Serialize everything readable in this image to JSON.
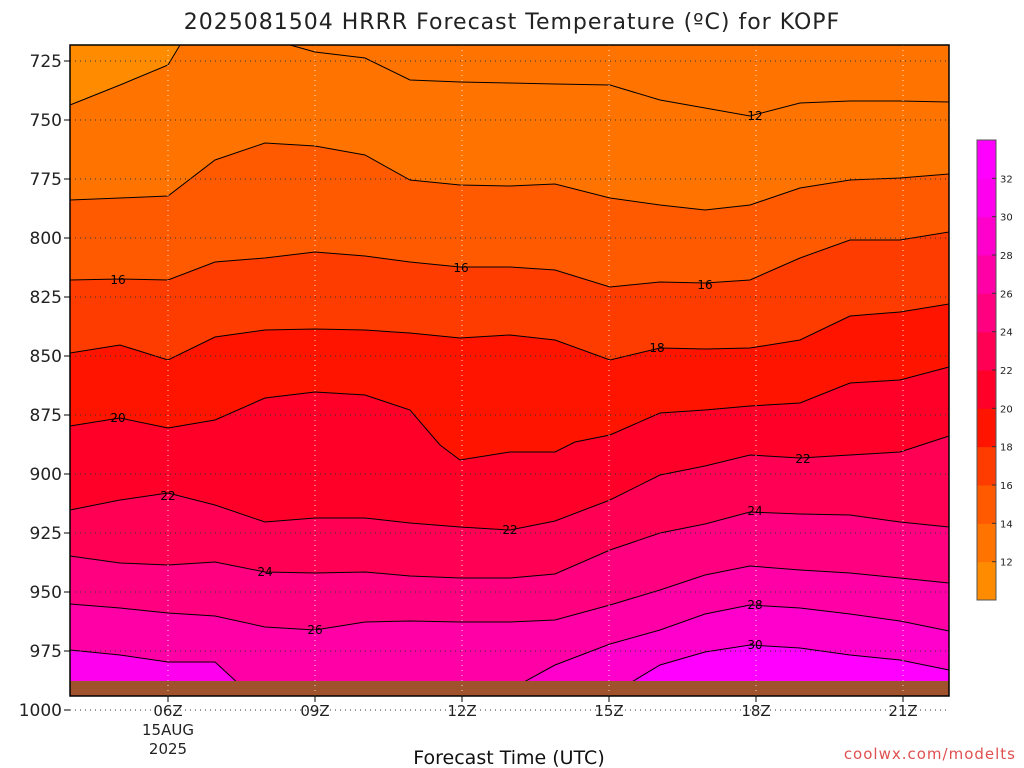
{
  "chart_data": {
    "type": "contour",
    "title": "2025081504 HRRR Forecast Temperature (ºC) for KOPF",
    "xlabel": "Forecast Time (UTC)",
    "ylabel": "",
    "credit": "coolwx.com/modelts",
    "y_axis": {
      "reversed": true,
      "ticks": [
        "725",
        "750",
        "775",
        "800",
        "825",
        "850",
        "875",
        "900",
        "925",
        "950",
        "975",
        "1000"
      ]
    },
    "x_axis": {
      "ticks": [
        "06Z",
        "09Z",
        "12Z",
        "15Z",
        "18Z",
        "21Z"
      ],
      "date_lines": [
        "15AUG",
        "2025"
      ]
    },
    "grid": true,
    "colorbar": {
      "ticks": [
        "12",
        "14",
        "16",
        "18",
        "20",
        "22",
        "24",
        "26",
        "28",
        "30",
        "32"
      ],
      "colors": [
        "#ff8c00",
        "#ff7300",
        "#ff5a00",
        "#ff3c00",
        "#ff1400",
        "#ff0028",
        "#ff0055",
        "#ff0080",
        "#ff00a6",
        "#ff00cc",
        "#ff00ee",
        "#ff00ff"
      ]
    },
    "contour_labels": [
      "12",
      "16",
      "16",
      "16",
      "18",
      "20",
      "22",
      "22",
      "22",
      "24",
      "24",
      "26",
      "28",
      "30"
    ],
    "surface_color": "#a0522d"
  }
}
